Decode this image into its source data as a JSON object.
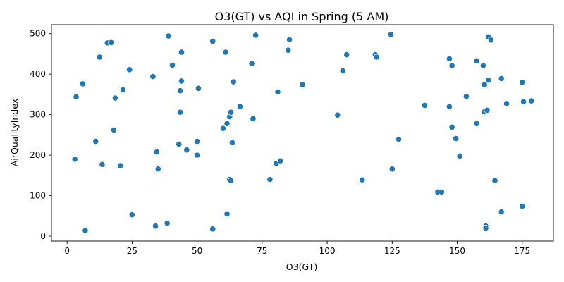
{
  "chart_data": {
    "type": "scatter",
    "title": "O3(GT) vs AQI in Spring (5 AM)",
    "xlabel": "O3(GT)",
    "ylabel": "AirQualityIndex",
    "xlim": [
      -6,
      187
    ],
    "ylim": [
      -12,
      522
    ],
    "xticks": [
      0,
      25,
      50,
      75,
      100,
      125,
      150,
      175
    ],
    "yticks": [
      0,
      100,
      200,
      300,
      400,
      500
    ],
    "grid": false,
    "legend": "none",
    "marker_color": "#1f77b4",
    "points": [
      {
        "x": 3,
        "y": 190
      },
      {
        "x": 3.5,
        "y": 344
      },
      {
        "x": 6,
        "y": 376
      },
      {
        "x": 7,
        "y": 14
      },
      {
        "x": 11,
        "y": 234
      },
      {
        "x": 12.5,
        "y": 442
      },
      {
        "x": 13.5,
        "y": 177
      },
      {
        "x": 15.5,
        "y": 477
      },
      {
        "x": 17,
        "y": 478
      },
      {
        "x": 18,
        "y": 262
      },
      {
        "x": 18.5,
        "y": 341
      },
      {
        "x": 20.5,
        "y": 174
      },
      {
        "x": 21.5,
        "y": 361
      },
      {
        "x": 24,
        "y": 411
      },
      {
        "x": 25,
        "y": 53
      },
      {
        "x": 33,
        "y": 394
      },
      {
        "x": 34,
        "y": 25
      },
      {
        "x": 34.5,
        "y": 208
      },
      {
        "x": 35,
        "y": 166
      },
      {
        "x": 38.5,
        "y": 32
      },
      {
        "x": 39,
        "y": 494
      },
      {
        "x": 40.5,
        "y": 422
      },
      {
        "x": 43,
        "y": 227
      },
      {
        "x": 43.5,
        "y": 306
      },
      {
        "x": 43.5,
        "y": 359
      },
      {
        "x": 44,
        "y": 454
      },
      {
        "x": 44,
        "y": 383
      },
      {
        "x": 46,
        "y": 213
      },
      {
        "x": 50,
        "y": 234
      },
      {
        "x": 50,
        "y": 200
      },
      {
        "x": 50.5,
        "y": 365
      },
      {
        "x": 56,
        "y": 481
      },
      {
        "x": 56,
        "y": 18
      },
      {
        "x": 60,
        "y": 266
      },
      {
        "x": 61,
        "y": 454
      },
      {
        "x": 61.5,
        "y": 278
      },
      {
        "x": 61.5,
        "y": 55
      },
      {
        "x": 62.5,
        "y": 295
      },
      {
        "x": 62.5,
        "y": 140
      },
      {
        "x": 63,
        "y": 137
      },
      {
        "x": 63,
        "y": 306
      },
      {
        "x": 63.5,
        "y": 231
      },
      {
        "x": 64,
        "y": 381
      },
      {
        "x": 66.5,
        "y": 320
      },
      {
        "x": 71,
        "y": 426
      },
      {
        "x": 71.5,
        "y": 290
      },
      {
        "x": 72.5,
        "y": 496
      },
      {
        "x": 78,
        "y": 140
      },
      {
        "x": 80.5,
        "y": 180
      },
      {
        "x": 81,
        "y": 356
      },
      {
        "x": 82,
        "y": 186
      },
      {
        "x": 85,
        "y": 459
      },
      {
        "x": 85.5,
        "y": 485
      },
      {
        "x": 90.5,
        "y": 374
      },
      {
        "x": 104,
        "y": 299
      },
      {
        "x": 106,
        "y": 408
      },
      {
        "x": 107.5,
        "y": 448
      },
      {
        "x": 113.5,
        "y": 139
      },
      {
        "x": 118.5,
        "y": 448
      },
      {
        "x": 119,
        "y": 442
      },
      {
        "x": 124.5,
        "y": 498
      },
      {
        "x": 125,
        "y": 166
      },
      {
        "x": 127.5,
        "y": 239
      },
      {
        "x": 137.5,
        "y": 323
      },
      {
        "x": 142.5,
        "y": 109
      },
      {
        "x": 144,
        "y": 109
      },
      {
        "x": 147,
        "y": 438
      },
      {
        "x": 147,
        "y": 320
      },
      {
        "x": 148,
        "y": 421
      },
      {
        "x": 148,
        "y": 269
      },
      {
        "x": 149.5,
        "y": 241
      },
      {
        "x": 151,
        "y": 198
      },
      {
        "x": 153.5,
        "y": 345
      },
      {
        "x": 157.5,
        "y": 433
      },
      {
        "x": 157.5,
        "y": 278
      },
      {
        "x": 160,
        "y": 421
      },
      {
        "x": 160.5,
        "y": 374
      },
      {
        "x": 160.5,
        "y": 307
      },
      {
        "x": 161,
        "y": 25
      },
      {
        "x": 161,
        "y": 20
      },
      {
        "x": 161.5,
        "y": 311
      },
      {
        "x": 162,
        "y": 492
      },
      {
        "x": 162,
        "y": 385
      },
      {
        "x": 163,
        "y": 484
      },
      {
        "x": 164.5,
        "y": 137
      },
      {
        "x": 167,
        "y": 389
      },
      {
        "x": 167,
        "y": 60
      },
      {
        "x": 169,
        "y": 327
      },
      {
        "x": 175,
        "y": 380
      },
      {
        "x": 175,
        "y": 74
      },
      {
        "x": 175.5,
        "y": 332
      },
      {
        "x": 178.5,
        "y": 334
      }
    ]
  }
}
